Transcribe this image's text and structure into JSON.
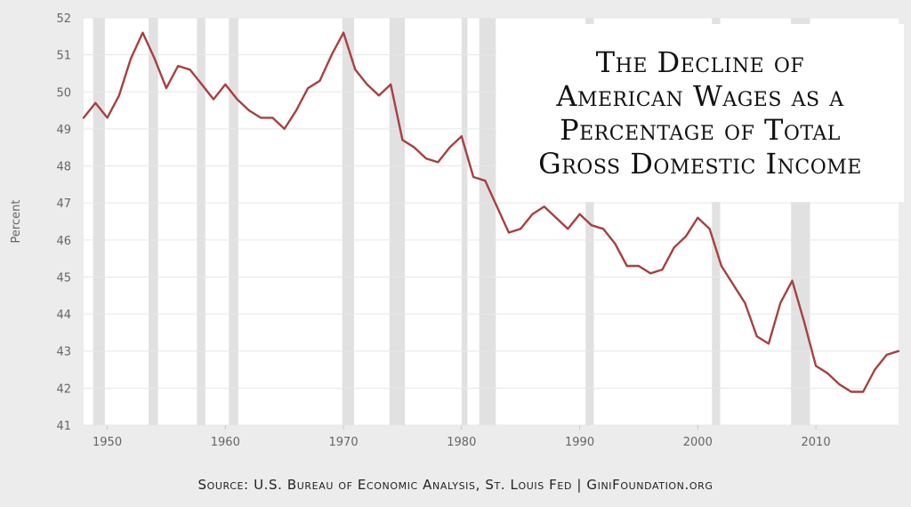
{
  "chart_data": {
    "type": "line",
    "title": [
      "The Decline of",
      "American Wages as a",
      "Percentage of Total",
      "Gross Domestic Income"
    ],
    "ylabel": "Percent",
    "xlabel": "",
    "xlim": [
      1948,
      2017
    ],
    "ylim": [
      41,
      52
    ],
    "x_ticks": [
      1950,
      1960,
      1970,
      1980,
      1990,
      2000,
      2010
    ],
    "y_ticks": [
      41,
      42,
      43,
      44,
      45,
      46,
      47,
      48,
      49,
      50,
      51,
      52
    ],
    "grid": true,
    "recessions": [
      [
        1948.8,
        1949.8
      ],
      [
        1953.5,
        1954.3
      ],
      [
        1957.6,
        1958.3
      ],
      [
        1960.3,
        1961.1
      ],
      [
        1969.9,
        1970.9
      ],
      [
        1973.9,
        1975.2
      ],
      [
        1980.0,
        1980.5
      ],
      [
        1981.5,
        1982.9
      ],
      [
        1990.5,
        1991.2
      ],
      [
        2001.2,
        2001.9
      ],
      [
        2007.9,
        2009.5
      ]
    ],
    "series": [
      {
        "name": "",
        "color": "#a84040",
        "x": [
          1948,
          1949,
          1950,
          1951,
          1952,
          1953,
          1954,
          1955,
          1956,
          1957,
          1958,
          1959,
          1960,
          1961,
          1962,
          1963,
          1964,
          1965,
          1966,
          1967,
          1968,
          1969,
          1970,
          1971,
          1972,
          1973,
          1974,
          1975,
          1976,
          1977,
          1978,
          1979,
          1980,
          1981,
          1982,
          1983,
          1984,
          1985,
          1986,
          1987,
          1988,
          1989,
          1990,
          1991,
          1992,
          1993,
          1994,
          1995,
          1996,
          1997,
          1998,
          1999,
          2000,
          2001,
          2002,
          2003,
          2004,
          2005,
          2006,
          2007,
          2008,
          2009,
          2010,
          2011,
          2012,
          2013,
          2014,
          2015,
          2016,
          2017
        ],
        "values": [
          49.3,
          49.7,
          49.3,
          49.9,
          50.9,
          51.6,
          50.9,
          50.1,
          50.7,
          50.6,
          50.2,
          49.8,
          50.2,
          49.8,
          49.5,
          49.3,
          49.3,
          49.0,
          49.5,
          50.1,
          50.3,
          51.0,
          51.6,
          50.6,
          50.2,
          49.9,
          50.2,
          48.7,
          48.5,
          48.2,
          48.1,
          48.5,
          48.8,
          47.7,
          47.6,
          46.9,
          46.2,
          46.3,
          46.7,
          46.9,
          46.6,
          46.3,
          46.7,
          46.4,
          46.3,
          45.9,
          45.3,
          45.3,
          45.1,
          45.2,
          45.8,
          46.1,
          46.6,
          46.3,
          45.3,
          44.8,
          44.3,
          43.4,
          43.2,
          44.3,
          44.9,
          43.8,
          42.6,
          42.4,
          42.1,
          41.9,
          41.9,
          42.5,
          42.9,
          43.0
        ]
      }
    ]
  },
  "source_text": "Source: U.S. Bureau of Economic Analysis, St. Louis Fed  |  GiniFoundation.org"
}
